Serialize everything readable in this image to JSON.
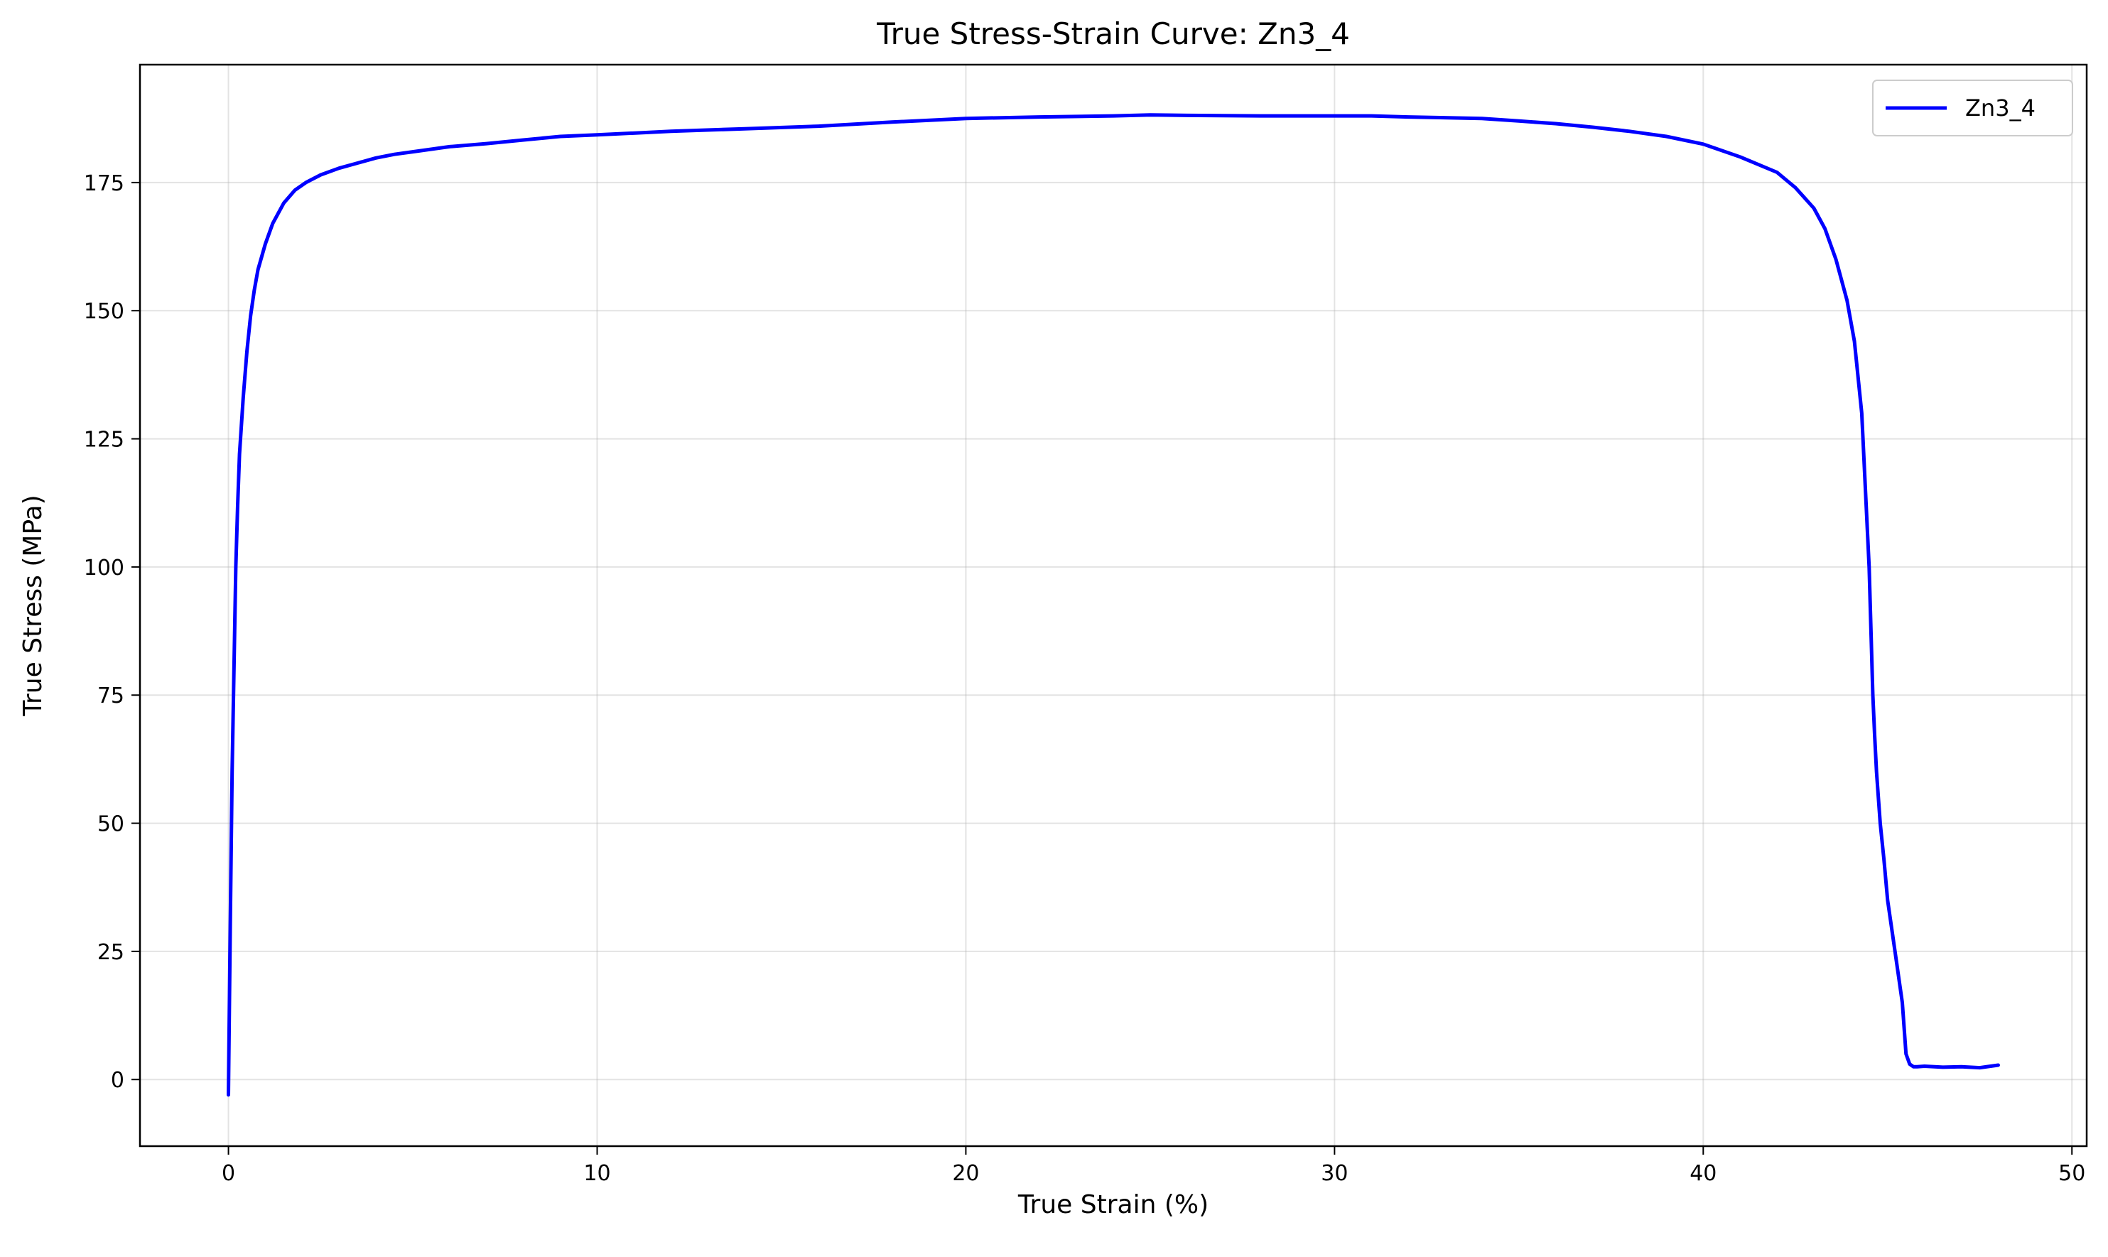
{
  "chart_data": {
    "type": "line",
    "title": "True Stress-Strain Curve: Zn3_4",
    "xlabel": "True Strain (%)",
    "ylabel": "True Stress (MPa)",
    "xlim": [
      -2.4,
      50.4
    ],
    "ylim": [
      -13,
      198
    ],
    "xticks": [
      0,
      10,
      20,
      30,
      40,
      50
    ],
    "yticks": [
      0,
      25,
      50,
      75,
      100,
      125,
      150,
      175
    ],
    "grid": true,
    "legend_position": "top-right",
    "series": [
      {
        "name": "Zn3_4",
        "color": "#0000ff",
        "x": [
          0,
          0.05,
          0.1,
          0.15,
          0.2,
          0.25,
          0.3,
          0.4,
          0.5,
          0.6,
          0.7,
          0.8,
          1.0,
          1.2,
          1.5,
          1.8,
          2.1,
          2.5,
          3.0,
          3.5,
          4.0,
          4.5,
          5.0,
          6.0,
          7.0,
          8.0,
          9.0,
          10.0,
          12.0,
          14.0,
          16.0,
          18.0,
          20.0,
          22.0,
          24.0,
          25.0,
          26.0,
          28.0,
          30.0,
          31.0,
          32.0,
          34.0,
          35.0,
          36.0,
          37.0,
          38.0,
          39.0,
          40.0,
          41.0,
          42.0,
          42.5,
          43.0,
          43.3,
          43.6,
          43.9,
          44.1,
          44.3,
          44.5,
          44.6,
          44.65,
          44.7,
          44.75,
          44.8,
          44.9,
          45.0,
          45.2,
          45.4,
          45.5,
          45.6,
          45.7,
          45.75,
          45.8,
          46.0,
          46.5,
          47.0,
          47.5,
          48.0
        ],
        "y": [
          -3,
          30,
          60,
          80,
          100,
          112,
          122,
          133,
          142,
          149,
          154,
          158,
          163,
          167,
          171,
          173.5,
          175,
          176.5,
          177.8,
          178.8,
          179.8,
          180.5,
          181,
          182,
          182.6,
          183.3,
          184,
          184.3,
          185,
          185.5,
          186,
          186.8,
          187.5,
          187.8,
          188,
          188.2,
          188.1,
          188,
          188,
          188,
          187.8,
          187.5,
          187,
          186.5,
          185.8,
          185,
          184,
          182.5,
          180,
          177,
          174,
          170,
          166,
          160,
          152,
          144,
          130,
          100,
          75,
          67,
          60,
          55,
          50,
          43,
          35,
          25,
          15,
          5,
          3,
          2.5,
          2.5,
          2.5,
          2.6,
          2.4,
          2.5,
          2.3,
          2.8
        ]
      }
    ]
  }
}
